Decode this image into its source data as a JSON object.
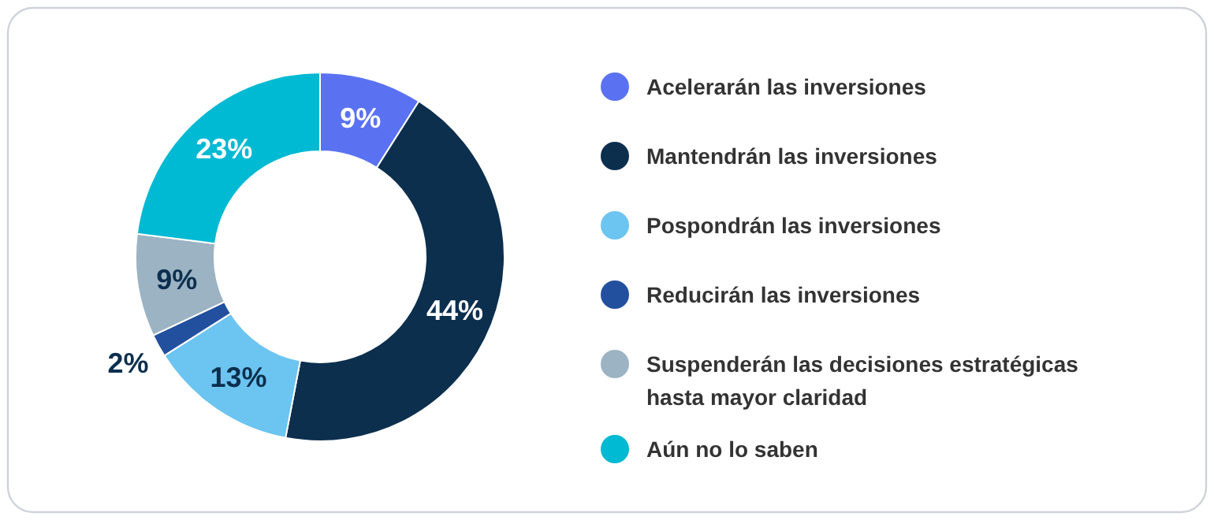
{
  "chart_data": {
    "type": "donut",
    "categories": [
      "Acelerarán las inversiones",
      "Mantendrán las inversiones",
      "Pospondrán las inversiones",
      "Reducirán las inversiones",
      "Suspenderán las decisiones estratégicas hasta mayor claridad",
      "Aún no lo saben"
    ],
    "values": [
      9,
      44,
      13,
      2,
      9,
      23
    ],
    "colors": [
      "#5a72f2",
      "#0c2f4e",
      "#6cc4f0",
      "#22509f",
      "#9cb3c3",
      "#00b9d3"
    ],
    "value_labels": [
      "9%",
      "44%",
      "13%",
      "2%",
      "9%",
      "23%"
    ],
    "legend": "right"
  }
}
